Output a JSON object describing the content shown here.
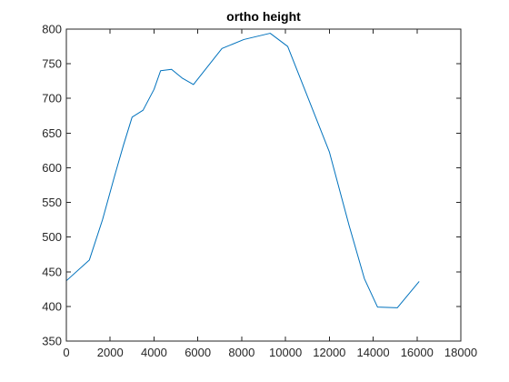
{
  "chart_data": {
    "type": "line",
    "title": "ortho height",
    "xlabel": "",
    "ylabel": "",
    "xlim": [
      0,
      18000
    ],
    "ylim": [
      350,
      800
    ],
    "x_ticks": [
      0,
      2000,
      4000,
      6000,
      8000,
      10000,
      12000,
      14000,
      16000,
      18000
    ],
    "y_ticks": [
      350,
      400,
      450,
      500,
      550,
      600,
      650,
      700,
      750,
      800
    ],
    "grid": false,
    "legend": "none",
    "series": [
      {
        "color": "#0072BD",
        "x": [
          0,
          1050,
          1650,
          2200,
          2600,
          3000,
          3500,
          4000,
          4300,
          4800,
          5300,
          5800,
          7100,
          8100,
          9300,
          10100,
          10900,
          12000,
          12900,
          13600,
          14200,
          15100,
          16100
        ],
        "y": [
          437,
          467,
          525,
          588,
          632,
          673,
          683,
          713,
          740,
          742,
          729,
          720,
          772,
          785,
          794,
          775,
          711,
          623,
          517,
          440,
          399,
          398,
          436
        ]
      }
    ]
  }
}
